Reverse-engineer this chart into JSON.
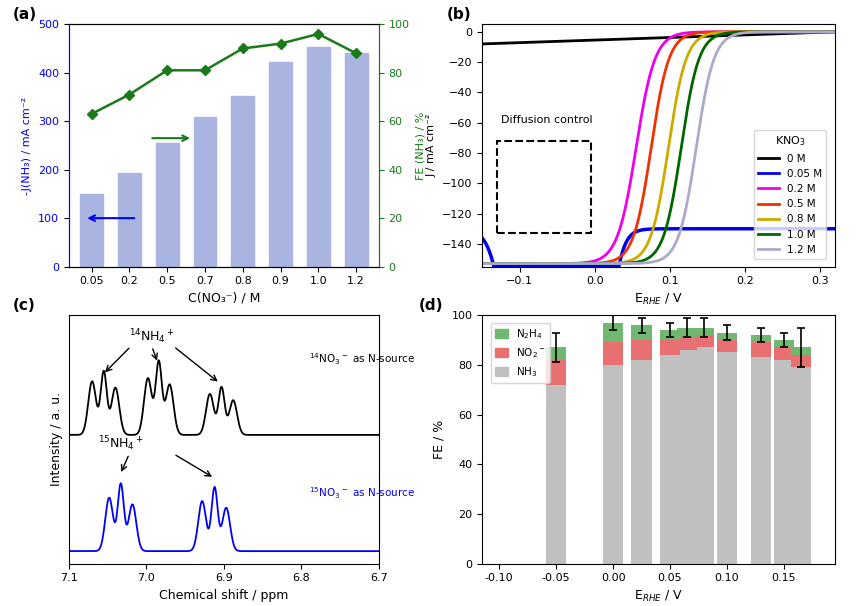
{
  "panel_a": {
    "categories": [
      0.05,
      0.2,
      0.5,
      0.7,
      0.8,
      0.9,
      1.0,
      1.2
    ],
    "bar_values": [
      150,
      193,
      255,
      308,
      353,
      423,
      453,
      440
    ],
    "fe_values": [
      63,
      71,
      81,
      81,
      90,
      92,
      96,
      88
    ],
    "bar_color": "#aab4e0",
    "line_color": "#1a7a1a",
    "ylabel_left": "-J(NH₃) / mA cm⁻²",
    "ylabel_right": "FE (NH₃) / %",
    "xlabel": "C(NO₃⁻) / M",
    "ylim_left": [
      0,
      500
    ],
    "ylim_right": [
      0,
      100
    ]
  },
  "panel_b": {
    "concentrations": [
      "0 M",
      "0.05 M",
      "0.2 M",
      "0.5 M",
      "0.8 M",
      "1.0 M",
      "1.2 M"
    ],
    "colors": [
      "#000000",
      "#0000ee",
      "#ee00ee",
      "#ee3300",
      "#ccaa00",
      "#006600",
      "#aaaacc"
    ],
    "xlabel": "E$_{RHE}$ / V",
    "ylabel": "J / mA cm⁻²",
    "xlim": [
      -0.15,
      0.32
    ],
    "ylim": [
      -155,
      5
    ],
    "annotation": "Diffusion control"
  },
  "panel_c": {
    "xlabel": "Chemical shift / ppm",
    "ylabel": "Intensity / a. u.",
    "black_label": "$^{14}$NO$_3$$^-$ as N-source",
    "blue_label": "$^{15}$NO$_3$$^-$ as N-source",
    "nh4_14_label": "$^{14}$NH$_4$$^+$",
    "nh4_15_label": "$^{15}$NH$_4$$^+$"
  },
  "panel_d": {
    "x_positions": [
      -0.05,
      0.0,
      0.025,
      0.05,
      0.065,
      0.08,
      0.1,
      0.13,
      0.15,
      0.165
    ],
    "nh3_fe": [
      72,
      80,
      82,
      84,
      86,
      87,
      85,
      83,
      82,
      79
    ],
    "no2_fe": [
      10,
      9,
      8,
      6,
      5,
      5,
      5,
      6,
      5,
      5
    ],
    "n2h4_fe": [
      5,
      8,
      6,
      4,
      4,
      3,
      3,
      3,
      3,
      3
    ],
    "nh3_err": [
      6,
      3,
      3,
      3,
      4,
      4,
      3,
      3,
      3,
      8
    ],
    "nh3_color": "#c0c0c0",
    "no2_color": "#e87070",
    "n2h4_color": "#70b870",
    "xlabel": "E$_{RHE}$ / V",
    "ylabel": "FE / %",
    "xlim": [
      -0.115,
      0.195
    ],
    "ylim": [
      0,
      100
    ]
  }
}
